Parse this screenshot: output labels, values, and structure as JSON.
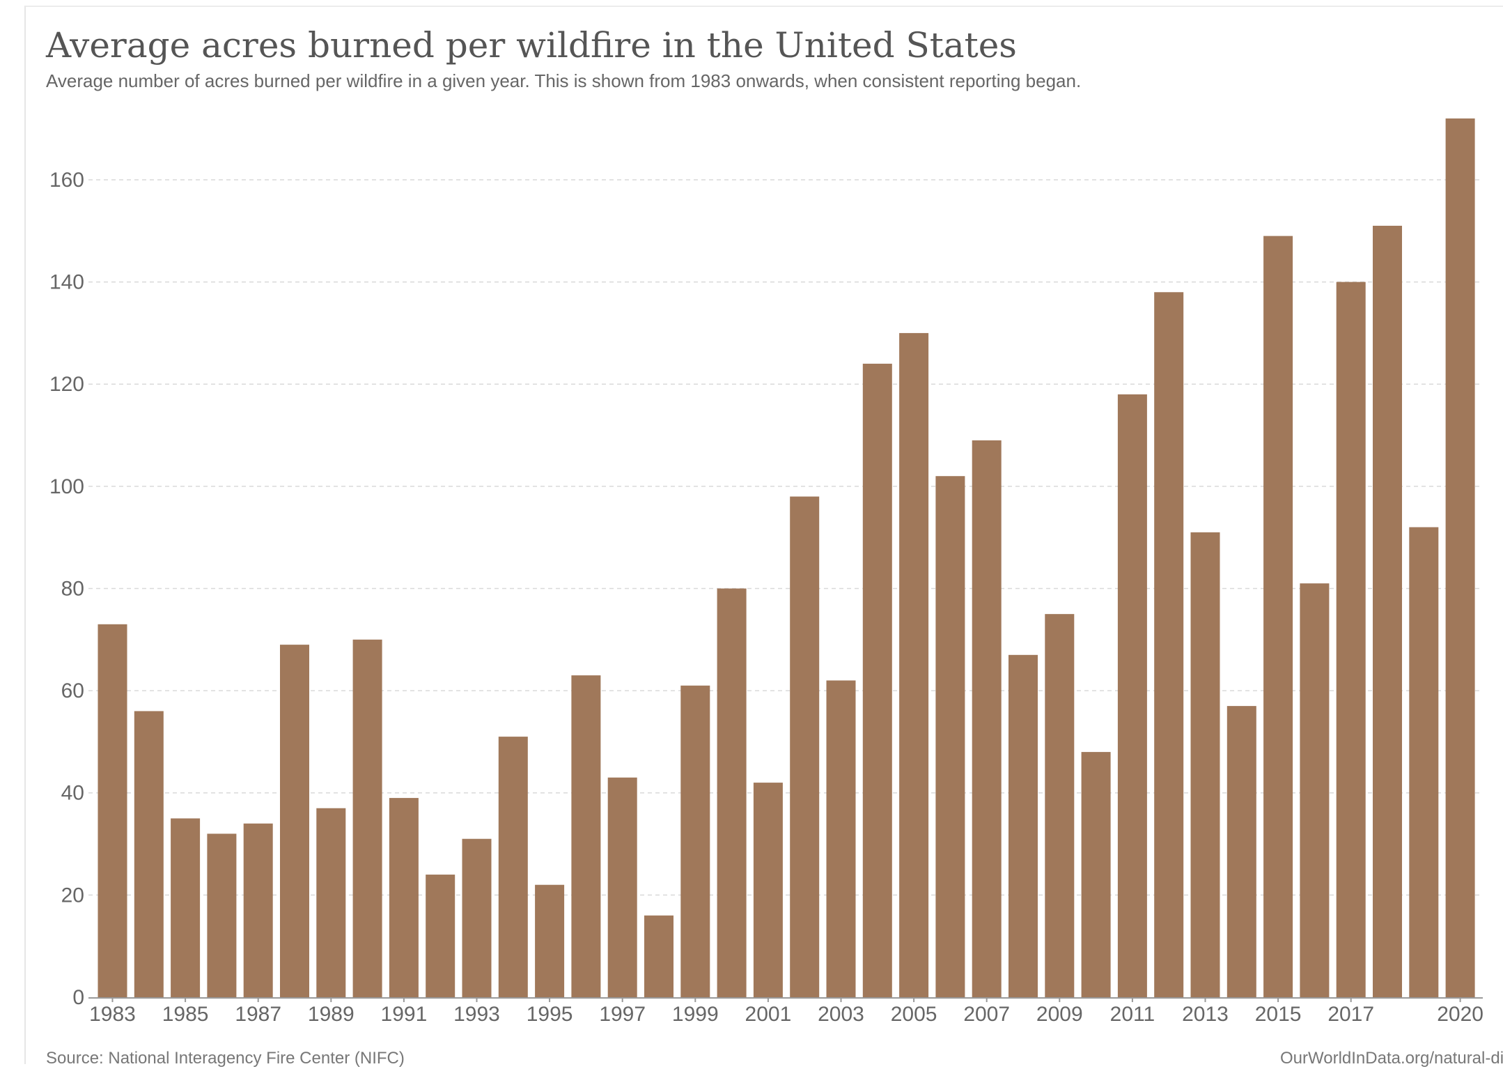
{
  "chart_data": {
    "type": "bar",
    "title": "Average acres burned per wildfire in the United States",
    "subtitle": "Average number of acres burned per wildfire in a given year. This is shown from 1983 onwards, when consistent reporting began.",
    "xlabel": "",
    "ylabel": "",
    "categories": [
      "1983",
      "1984",
      "1985",
      "1986",
      "1987",
      "1988",
      "1989",
      "1990",
      "1991",
      "1992",
      "1993",
      "1994",
      "1995",
      "1996",
      "1997",
      "1998",
      "1999",
      "2000",
      "2001",
      "2002",
      "2003",
      "2004",
      "2005",
      "2006",
      "2007",
      "2008",
      "2009",
      "2010",
      "2011",
      "2012",
      "2013",
      "2014",
      "2015",
      "2016",
      "2017",
      "2018",
      "2019",
      "2020"
    ],
    "values": [
      73,
      56,
      35,
      32,
      34,
      69,
      37,
      70,
      39,
      24,
      31,
      51,
      22,
      63,
      43,
      16,
      61,
      80,
      42,
      98,
      62,
      124,
      130,
      102,
      109,
      67,
      75,
      48,
      118,
      138,
      91,
      57,
      149,
      81,
      140,
      151,
      92,
      172
    ],
    "x_tick_labels": [
      "1983",
      "1985",
      "1987",
      "1989",
      "1991",
      "1993",
      "1995",
      "1997",
      "1999",
      "2001",
      "2003",
      "2005",
      "2007",
      "2009",
      "2011",
      "2013",
      "2015",
      "2017",
      "2020"
    ],
    "y_ticks": [
      0,
      20,
      40,
      60,
      80,
      100,
      120,
      140,
      160
    ],
    "ylim": [
      0,
      172
    ],
    "grid": "horizontal dashed",
    "bar_color": "#a0785a",
    "source": "Source: National Interagency Fire Center (NIFC)",
    "url": "OurWorldInData.org/natural-disasters"
  }
}
